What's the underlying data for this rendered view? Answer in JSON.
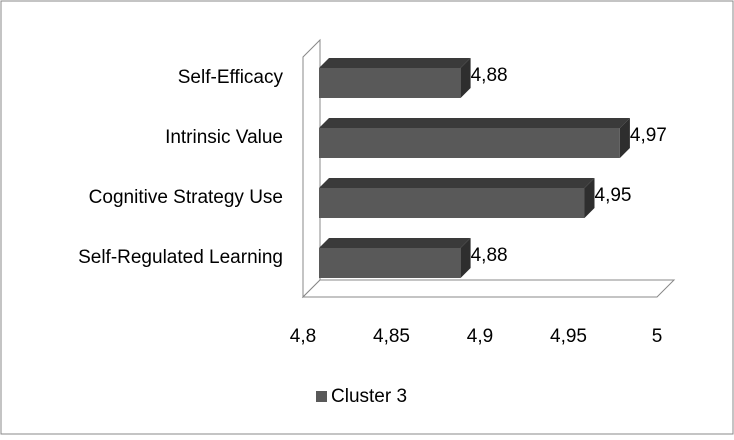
{
  "chart_data": {
    "type": "bar",
    "orientation": "horizontal",
    "categories": [
      "Self-Efficacy",
      "Intrinsic Value",
      "Cognitive Strategy Use",
      "Self-Regulated Learning"
    ],
    "series": [
      {
        "name": "Cluster 3",
        "color": "#595959",
        "values": [
          4.88,
          4.97,
          4.95,
          4.88
        ],
        "value_labels": [
          "4,88",
          "4,97",
          "4,95",
          "4,88"
        ]
      }
    ],
    "xlim": [
      4.8,
      5
    ],
    "xticks": [
      {
        "value": 4.8,
        "label": "4,8"
      },
      {
        "value": 4.85,
        "label": "4,85"
      },
      {
        "value": 4.9,
        "label": "4,9"
      },
      {
        "value": 4.95,
        "label": "4,95"
      },
      {
        "value": 5,
        "label": "5"
      }
    ],
    "legend": "bottom",
    "three_d": true
  }
}
